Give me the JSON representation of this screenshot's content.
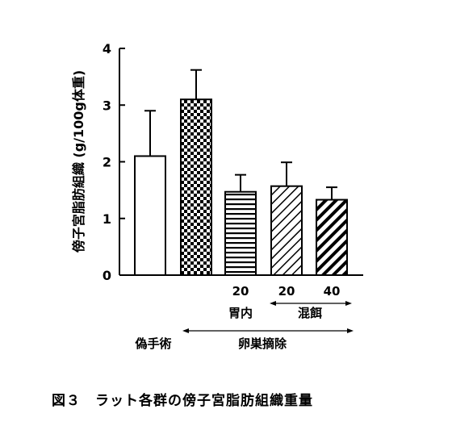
{
  "chart_data": {
    "type": "bar",
    "ylabel": "傍子宮脂肪組織 (g/100g体重)",
    "ylim": [
      0,
      4
    ],
    "yticks": [
      0,
      1,
      2,
      3,
      4
    ],
    "grid": false,
    "bars": [
      {
        "value": 2.1,
        "error": 0.8,
        "pattern": "white"
      },
      {
        "value": 3.1,
        "error": 0.52,
        "pattern": "checker"
      },
      {
        "value": 1.47,
        "error": 0.3,
        "pattern": "horizontal"
      },
      {
        "value": 1.57,
        "error": 0.42,
        "pattern": "diag-thin"
      },
      {
        "value": 1.33,
        "error": 0.22,
        "pattern": "diag-thick"
      }
    ],
    "dose_labels": [
      "",
      "",
      "20",
      "20",
      "40"
    ],
    "route_labels": {
      "gastric": "胃内",
      "diet": "混餌"
    },
    "group_labels": {
      "sham": "偽手術",
      "ovx": "卵巣摘除"
    }
  },
  "caption": "図３　ラット各群の傍子宮脂肪組織重量"
}
